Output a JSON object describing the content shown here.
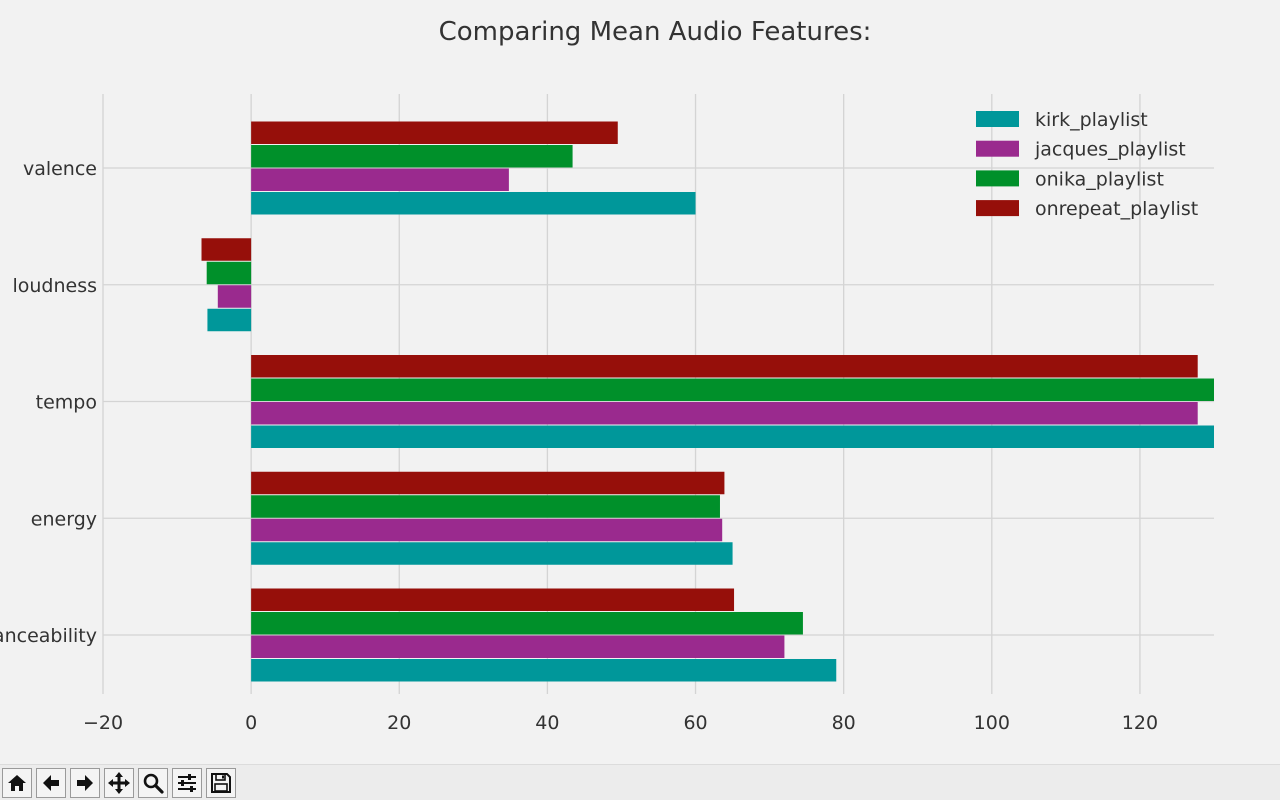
{
  "chart_data": {
    "type": "bar",
    "orientation": "horizontal",
    "title": "Comparing Mean Audio Features:",
    "xlabel": "",
    "ylabel": "",
    "categories": [
      "danceability",
      "energy",
      "tempo",
      "loudness",
      "valence"
    ],
    "xlim": [
      -20,
      130
    ],
    "xticks": [
      -20,
      0,
      20,
      40,
      60,
      80,
      100,
      120
    ],
    "xtick_labels": [
      "−20",
      "0",
      "20",
      "40",
      "60",
      "80",
      "100",
      "120"
    ],
    "grid": true,
    "legend_position": "top-right",
    "series": [
      {
        "name": "kirk_playlist",
        "color": "#00979a",
        "values": [
          79.0,
          65.0,
          130.0,
          -5.9,
          60.0
        ]
      },
      {
        "name": "jacques_playlist",
        "color": "#9a2a8e",
        "values": [
          72.0,
          63.6,
          127.8,
          -4.5,
          34.8
        ]
      },
      {
        "name": "onika_playlist",
        "color": "#00902a",
        "values": [
          74.5,
          63.3,
          130.0,
          -6.0,
          43.4
        ]
      },
      {
        "name": "onrepeat_playlist",
        "color": "#960f0a",
        "values": [
          65.2,
          63.9,
          127.8,
          -6.7,
          49.5
        ]
      }
    ]
  },
  "toolbar": {
    "buttons": [
      {
        "name": "home-button",
        "icon": "home-icon"
      },
      {
        "name": "back-button",
        "icon": "arrow-left-icon"
      },
      {
        "name": "forward-button",
        "icon": "arrow-right-icon"
      },
      {
        "name": "pan-button",
        "icon": "move-icon"
      },
      {
        "name": "zoom-button",
        "icon": "magnifier-icon"
      },
      {
        "name": "configure-button",
        "icon": "sliders-icon"
      },
      {
        "name": "save-button",
        "icon": "floppy-icon"
      }
    ]
  }
}
